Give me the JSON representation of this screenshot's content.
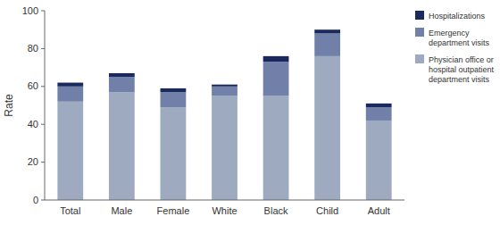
{
  "chart_data": {
    "type": "bar",
    "stacked": true,
    "grid": false,
    "legend": "upper right",
    "ylabel": "Rate",
    "categories": [
      "Total",
      "Male",
      "Female",
      "White",
      "Black",
      "Child",
      "Adult"
    ],
    "series": [
      {
        "name": "Physician office or\nhospital outpatient\ndepartment visits",
        "color": "#9daabf",
        "values": [
          52,
          57,
          49,
          55,
          55,
          76,
          42
        ]
      },
      {
        "name": "Emergency\ndepartment visits",
        "color": "#7080a8",
        "values": [
          8,
          8,
          8,
          5,
          18,
          12,
          7
        ]
      },
      {
        "name": "Hospitalizations",
        "color": "#1a2a5e",
        "values": [
          2,
          2,
          2,
          1,
          3,
          2,
          2
        ]
      }
    ],
    "ylim": [
      0,
      100
    ],
    "yticks": [
      0,
      20,
      40,
      60,
      80,
      100
    ]
  }
}
